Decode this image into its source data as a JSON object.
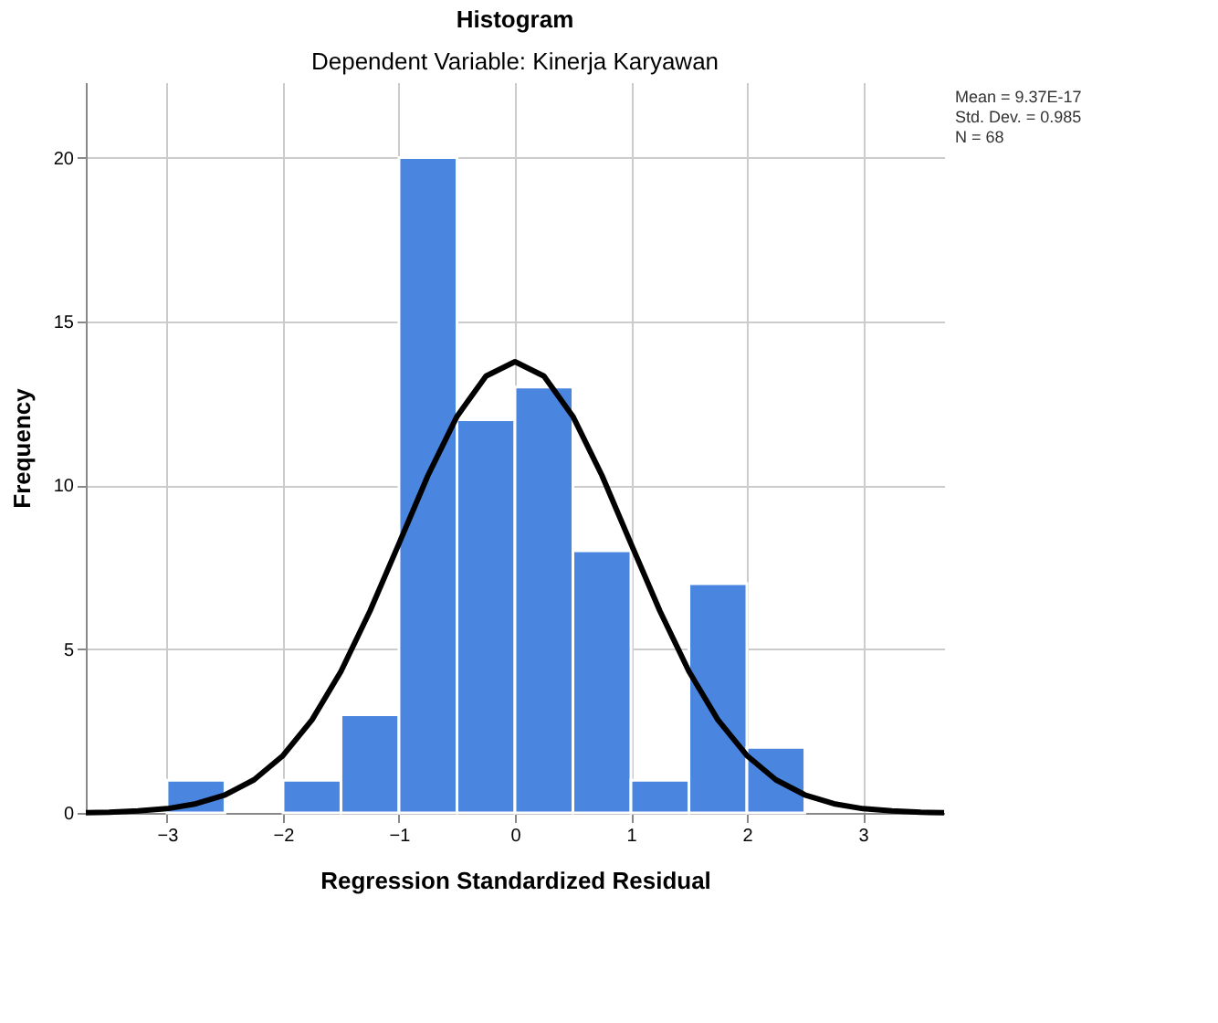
{
  "chart_data": {
    "type": "histogram",
    "title": "Histogram",
    "subtitle": "Dependent Variable: Kinerja Karyawan",
    "xlabel": "Regression Standardized Residual",
    "ylabel": "Frequency",
    "bins": [
      -3,
      -2.5,
      -2,
      -1.5,
      -1,
      -0.5,
      0,
      0.5,
      1,
      1.5,
      2,
      2.5
    ],
    "series": [
      {
        "color": "#4a86e0",
        "values": [
          1,
          0,
          1,
          3,
          20,
          12,
          13,
          8,
          1,
          7,
          2
        ]
      },
      {
        "type": "line",
        "color": "#000000",
        "x": [
          -3.7,
          -3.5,
          -3.25,
          -3,
          -2.75,
          -2.5,
          -2.25,
          -2,
          -1.75,
          -1.5,
          -1.25,
          -1,
          -0.75,
          -0.5,
          -0.25,
          0,
          0.25,
          0.5,
          0.75,
          1,
          1.25,
          1.5,
          1.75,
          2,
          2.25,
          2.5,
          2.75,
          3,
          3.25,
          3.5,
          3.7
        ],
        "values": [
          0.01,
          0.02,
          0.06,
          0.13,
          0.28,
          0.55,
          1.01,
          1.75,
          2.84,
          4.32,
          6.16,
          8.22,
          10.3,
          12.1,
          13.33,
          13.77,
          13.33,
          12.1,
          10.3,
          8.22,
          6.16,
          4.32,
          2.84,
          1.75,
          1.01,
          0.55,
          0.28,
          0.13,
          0.06,
          0.02,
          0.01
        ]
      }
    ],
    "xlim": [
      -3.7,
      3.7
    ],
    "xticks": [
      -3,
      -2,
      -1,
      0,
      1,
      2,
      3
    ],
    "ylim": [
      0,
      22.3
    ],
    "yticks": [
      0,
      5,
      10,
      15,
      20
    ],
    "grid": true,
    "annotations": [
      "Mean = 9.37E-17",
      "Std. Dev. = 0.985",
      "N = 68"
    ]
  }
}
